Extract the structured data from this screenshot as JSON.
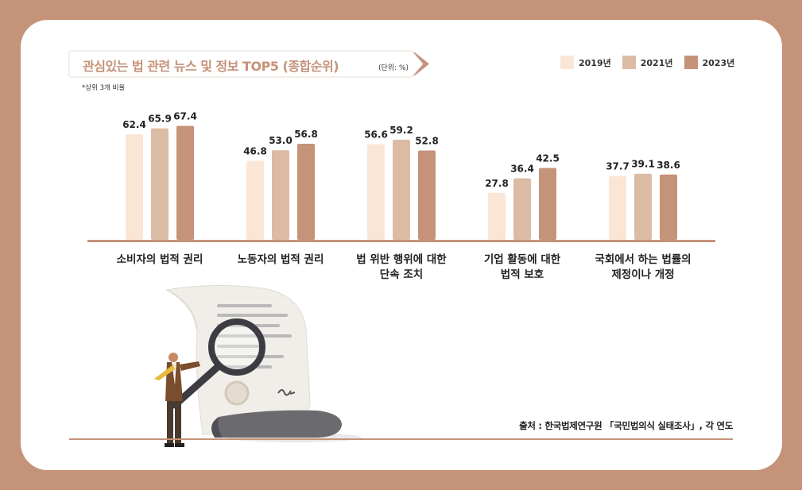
{
  "title": "관심있는 법 관련 뉴스 및 정보 TOP5 (종합순위)",
  "unit": "(단위: %)",
  "footnote": "*상위 3개 비율",
  "source": "출처 : 한국법제연구원 「국민법의식 실태조사」, 각 연도",
  "colors": {
    "2019년": "#fbe6d6",
    "2021년": "#dcbba5",
    "2023년": "#c49379",
    "accent": "#c49379"
  },
  "chart_data": {
    "type": "bar",
    "categories": [
      [
        "소비자의 법적 권리"
      ],
      [
        "노동자의 법적 권리"
      ],
      [
        "법 위반 행위에 대한",
        "단속 조치"
      ],
      [
        "기업 활동에 대한",
        "법적 보호"
      ],
      [
        "국회에서 하는 법률의",
        "제정이나 개정"
      ]
    ],
    "series": [
      {
        "name": "2019년",
        "values": [
          62.4,
          46.8,
          56.6,
          27.8,
          37.7
        ]
      },
      {
        "name": "2021년",
        "values": [
          65.9,
          53.0,
          59.2,
          36.4,
          39.1
        ]
      },
      {
        "name": "2023년",
        "values": [
          67.4,
          56.8,
          52.8,
          42.5,
          38.6
        ]
      }
    ],
    "legend": "top-right",
    "grid": false
  }
}
